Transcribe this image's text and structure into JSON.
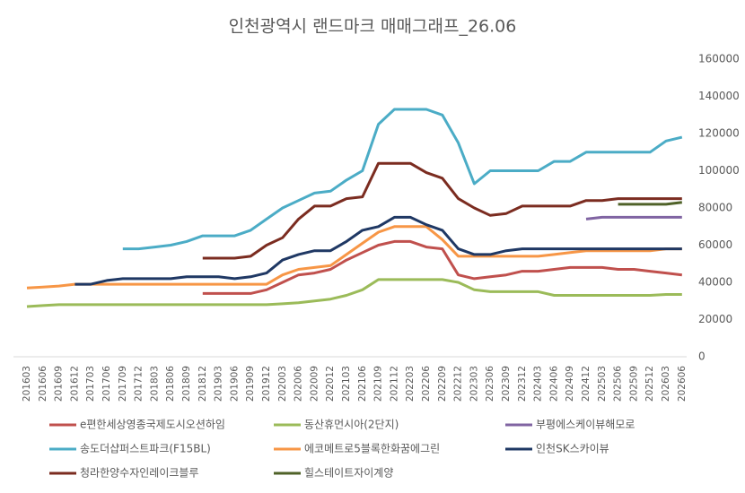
{
  "chart_data": {
    "type": "line",
    "title": "인천광역시 랜드마크 매매그래프_26.06",
    "categories": [
      "201603",
      "201606",
      "201609",
      "201612",
      "201703",
      "201706",
      "201709",
      "201712",
      "201803",
      "201806",
      "201809",
      "201812",
      "201903",
      "201906",
      "201909",
      "201912",
      "202003",
      "202006",
      "202009",
      "202012",
      "202103",
      "202106",
      "202109",
      "202112",
      "202203",
      "202206",
      "202209",
      "202212",
      "202303",
      "202306",
      "202309",
      "202312",
      "202403",
      "202406",
      "202409",
      "202412",
      "202503",
      "202506",
      "202509",
      "202512",
      "202603",
      "202606"
    ],
    "ylim": [
      0,
      160000
    ],
    "yticks": [
      0,
      20000,
      40000,
      60000,
      80000,
      100000,
      120000,
      140000,
      160000
    ],
    "grid": false,
    "series": [
      {
        "name": "e편한세상영종국제도시오션하임",
        "color": "#c0504d",
        "values": [
          null,
          null,
          null,
          null,
          null,
          null,
          null,
          null,
          null,
          null,
          null,
          34000,
          34000,
          34000,
          34000,
          36000,
          40000,
          44000,
          45000,
          47000,
          52000,
          56000,
          60000,
          62000,
          62000,
          59000,
          58000,
          44000,
          42000,
          43000,
          44000,
          46000,
          46000,
          47000,
          48000,
          48000,
          48000,
          47000,
          47000,
          46000,
          45000,
          44000
        ]
      },
      {
        "name": "동산휴먼시아(2단지)",
        "color": "#9bbb59",
        "values": [
          27000,
          27500,
          28000,
          28000,
          28000,
          28000,
          28000,
          28000,
          28000,
          28000,
          28000,
          28000,
          28000,
          28000,
          28000,
          28000,
          28500,
          29000,
          30000,
          31000,
          33000,
          36000,
          41500,
          41500,
          41500,
          41500,
          41500,
          40000,
          36000,
          35000,
          35000,
          35000,
          35000,
          33000,
          33000,
          33000,
          33000,
          33000,
          33000,
          33000,
          33500,
          33500
        ]
      },
      {
        "name": "부평에스케이뷰해모로",
        "color": "#8064a2",
        "values": [
          null,
          null,
          null,
          null,
          null,
          null,
          null,
          null,
          null,
          null,
          null,
          null,
          null,
          null,
          null,
          null,
          null,
          null,
          null,
          null,
          null,
          null,
          null,
          null,
          null,
          null,
          null,
          null,
          null,
          null,
          null,
          null,
          null,
          null,
          null,
          74000,
          75000,
          75000,
          75000,
          75000,
          75000,
          75000
        ]
      },
      {
        "name": "송도더샵퍼스트파크(F15BL)",
        "color": "#4bacc6",
        "values": [
          null,
          null,
          null,
          null,
          null,
          null,
          58000,
          58000,
          59000,
          60000,
          62000,
          65000,
          65000,
          65000,
          68000,
          74000,
          80000,
          84000,
          88000,
          89000,
          95000,
          100000,
          125000,
          133000,
          133000,
          133000,
          130000,
          115000,
          93000,
          100000,
          100000,
          100000,
          100000,
          105000,
          105000,
          110000,
          110000,
          110000,
          110000,
          110000,
          116000,
          118000
        ]
      },
      {
        "name": "에코메트로5블록한화꿈에그린",
        "color": "#f79646",
        "values": [
          37000,
          37500,
          38000,
          39000,
          39000,
          39000,
          39000,
          39000,
          39000,
          39000,
          39000,
          39000,
          39000,
          39000,
          39000,
          39000,
          44000,
          47000,
          48000,
          49000,
          55000,
          61000,
          67000,
          70000,
          70000,
          70000,
          63000,
          54000,
          54000,
          54000,
          54000,
          54000,
          54000,
          55000,
          56000,
          57000,
          57000,
          57000,
          57000,
          57000,
          58000,
          58000
        ]
      },
      {
        "name": "인천SK스카이뷰",
        "color": "#1f3864",
        "values": [
          null,
          null,
          null,
          39000,
          39000,
          41000,
          42000,
          42000,
          42000,
          42000,
          43000,
          43000,
          43000,
          42000,
          43000,
          45000,
          52000,
          55000,
          57000,
          57000,
          62000,
          68000,
          70000,
          75000,
          75000,
          71000,
          68000,
          58000,
          55000,
          55000,
          57000,
          58000,
          58000,
          58000,
          58000,
          58000,
          58000,
          58000,
          58000,
          58000,
          58000,
          58000
        ]
      },
      {
        "name": "청라한양수자인레이크블루",
        "color": "#7b2c20",
        "values": [
          null,
          null,
          null,
          null,
          null,
          null,
          null,
          null,
          null,
          null,
          null,
          53000,
          53000,
          53000,
          54000,
          60000,
          64000,
          74000,
          81000,
          81000,
          85000,
          86000,
          104000,
          104000,
          104000,
          99000,
          96000,
          85000,
          80000,
          76000,
          77000,
          81000,
          81000,
          81000,
          81000,
          84000,
          84000,
          85000,
          85000,
          85000,
          85000,
          85000
        ]
      },
      {
        "name": "힐스테이트자이계양",
        "color": "#4f6228",
        "values": [
          null,
          null,
          null,
          null,
          null,
          null,
          null,
          null,
          null,
          null,
          null,
          null,
          null,
          null,
          null,
          null,
          null,
          null,
          null,
          null,
          null,
          null,
          null,
          null,
          null,
          null,
          null,
          null,
          null,
          null,
          null,
          null,
          null,
          null,
          null,
          null,
          null,
          82000,
          82000,
          82000,
          82000,
          83000
        ]
      }
    ]
  }
}
